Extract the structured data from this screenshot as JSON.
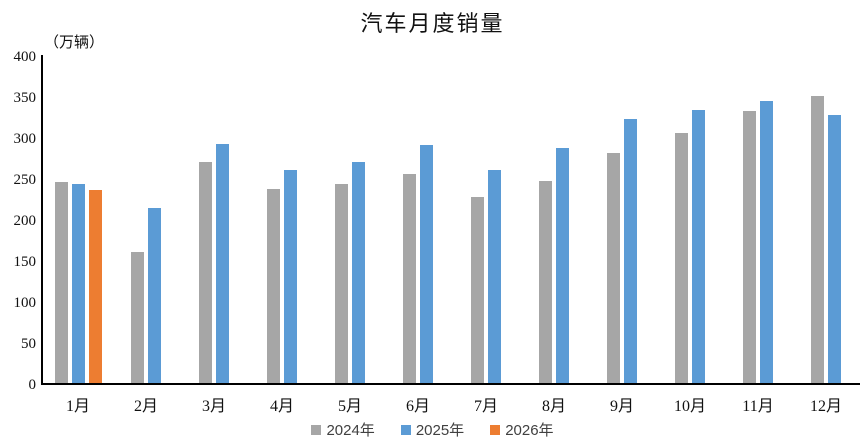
{
  "chart_data": {
    "type": "bar",
    "title": "汽车月度销量",
    "ylabel": "（万辆）",
    "xlabel": "",
    "ylim": [
      0,
      400
    ],
    "ytick_step": 50,
    "yticks": [
      400,
      350,
      300,
      250,
      200,
      150,
      100,
      50,
      0
    ],
    "grid": false,
    "legend_position": "bottom",
    "categories": [
      "1月",
      "2月",
      "3月",
      "4月",
      "5月",
      "6月",
      "7月",
      "8月",
      "9月",
      "10月",
      "11月",
      "12月"
    ],
    "series": [
      {
        "name": "2024年",
        "color": "#a6a6a6",
        "values": [
          245,
          160,
          270,
          237,
          243,
          255,
          227,
          246,
          281,
          305,
          332,
          350
        ]
      },
      {
        "name": "2025年",
        "color": "#5b9bd5",
        "values": [
          243,
          213,
          291,
          260,
          269,
          290,
          260,
          286,
          322,
          333,
          344,
          327
        ]
      },
      {
        "name": "2026年",
        "color": "#ed7d31",
        "values": [
          235,
          null,
          null,
          null,
          null,
          null,
          null,
          null,
          null,
          null,
          null,
          null
        ]
      }
    ],
    "axis_color": "#000000",
    "text_color": "#111111",
    "legend_text_color": "#404040"
  }
}
